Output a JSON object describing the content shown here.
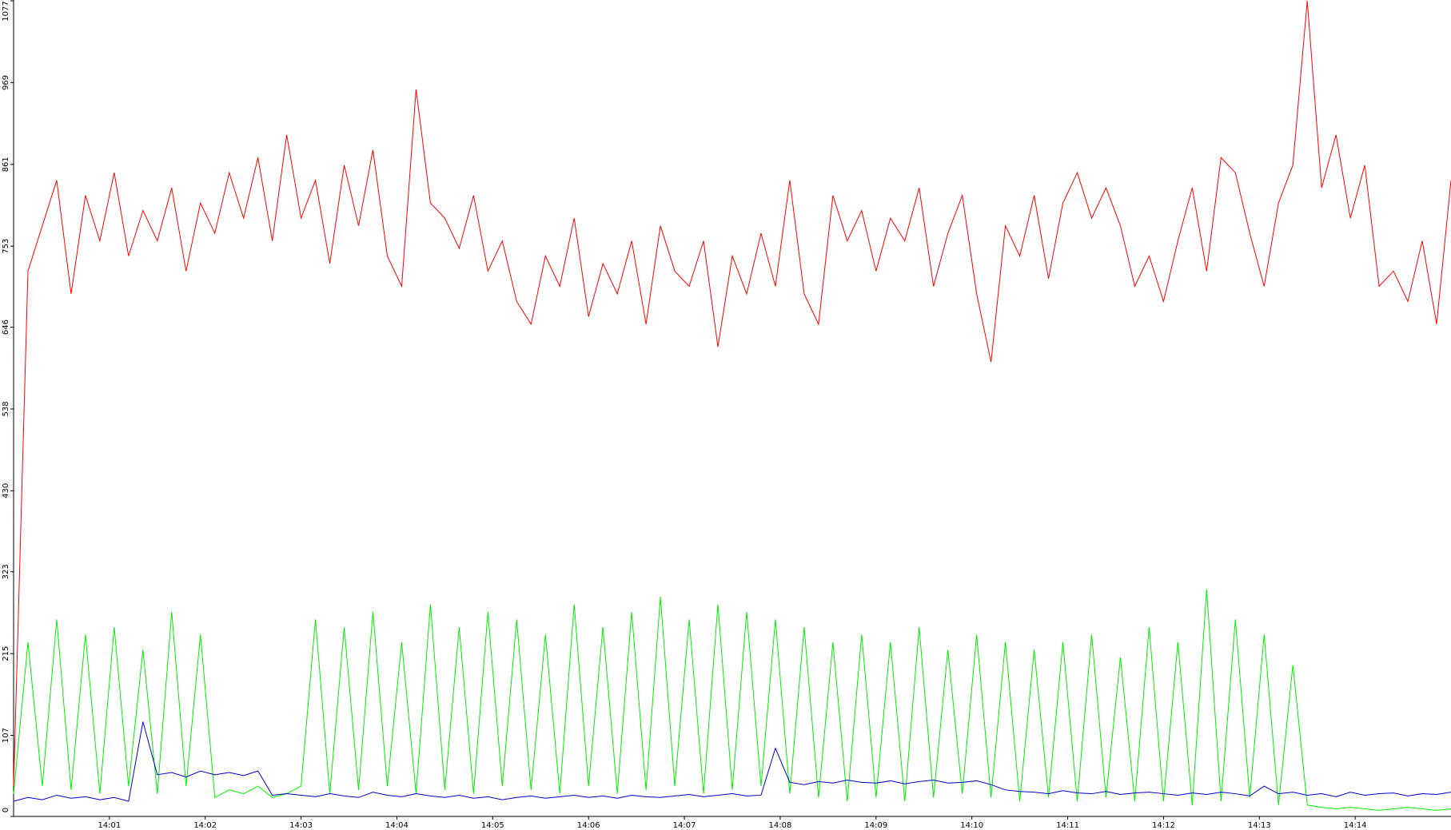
{
  "chart_data": {
    "type": "line",
    "x": [
      0,
      0.15,
      0.3,
      0.45,
      0.6,
      0.75,
      0.9,
      1.05,
      1.2,
      1.35,
      1.5,
      1.65,
      1.8,
      1.95,
      2.1,
      2.25,
      2.4,
      2.55,
      2.7,
      2.85,
      3,
      3.15,
      3.3,
      3.45,
      3.6,
      3.75,
      3.9,
      4.05,
      4.2,
      4.35,
      4.5,
      4.65,
      4.8,
      4.95,
      5.1,
      5.25,
      5.4,
      5.55,
      5.7,
      5.85,
      6,
      6.15,
      6.3,
      6.45,
      6.6,
      6.75,
      6.9,
      7.05,
      7.2,
      7.35,
      7.5,
      7.65,
      7.8,
      7.95,
      8.1,
      8.25,
      8.4,
      8.55,
      8.7,
      8.85,
      9,
      9.15,
      9.3,
      9.45,
      9.6,
      9.75,
      9.9,
      10.05,
      10.2,
      10.35,
      10.5,
      10.65,
      10.8,
      10.95,
      11.1,
      11.25,
      11.4,
      11.55,
      11.7,
      11.85,
      12,
      12.15,
      12.3,
      12.45,
      12.6,
      12.75,
      12.9,
      13.05,
      13.2,
      13.35,
      13.5,
      13.65,
      13.8,
      13.95,
      14.1,
      14.25,
      14.4,
      14.55,
      14.7,
      14.85,
      15
    ],
    "series": [
      {
        "color": "#ff0000",
        "values": [
          40,
          720,
          780,
          840,
          690,
          820,
          760,
          850,
          740,
          800,
          760,
          830,
          720,
          810,
          770,
          850,
          790,
          870,
          760,
          900,
          790,
          840,
          730,
          860,
          780,
          880,
          740,
          700,
          960,
          810,
          790,
          750,
          820,
          720,
          760,
          680,
          650,
          740,
          700,
          790,
          660,
          730,
          690,
          760,
          650,
          780,
          720,
          700,
          760,
          620,
          740,
          690,
          770,
          700,
          840,
          690,
          650,
          820,
          760,
          800,
          720,
          790,
          760,
          830,
          700,
          770,
          820,
          690,
          600,
          780,
          740,
          820,
          710,
          810,
          850,
          790,
          830,
          780,
          700,
          740,
          680,
          760,
          830,
          720,
          870,
          850,
          770,
          700,
          810,
          860,
          1077,
          830,
          900,
          790,
          860,
          700,
          720,
          680,
          760,
          650,
          840
        ]
      },
      {
        "color": "#00ee00",
        "values": [
          30,
          230,
          40,
          260,
          35,
          240,
          30,
          250,
          40,
          220,
          30,
          270,
          40,
          240,
          25,
          35,
          30,
          40,
          25,
          30,
          40,
          260,
          30,
          250,
          35,
          270,
          40,
          230,
          30,
          280,
          35,
          250,
          30,
          270,
          40,
          260,
          35,
          240,
          30,
          280,
          40,
          250,
          30,
          270,
          35,
          290,
          40,
          260,
          30,
          280,
          35,
          270,
          40,
          260,
          30,
          250,
          25,
          230,
          20,
          240,
          25,
          230,
          20,
          250,
          25,
          220,
          30,
          240,
          25,
          230,
          20,
          220,
          25,
          230,
          20,
          240,
          25,
          210,
          20,
          250,
          20,
          230,
          15,
          300,
          20,
          260,
          25,
          240,
          15,
          200,
          15,
          12,
          10,
          12,
          10,
          8,
          10,
          12,
          10,
          8,
          10
        ]
      },
      {
        "color": "#0000cc",
        "values": [
          20,
          25,
          22,
          28,
          24,
          26,
          22,
          25,
          20,
          125,
          55,
          58,
          52,
          60,
          55,
          58,
          54,
          60,
          28,
          30,
          28,
          26,
          30,
          27,
          25,
          32,
          28,
          26,
          30,
          27,
          25,
          28,
          24,
          26,
          22,
          25,
          27,
          24,
          26,
          28,
          25,
          27,
          24,
          28,
          26,
          25,
          27,
          29,
          26,
          28,
          30,
          27,
          28,
          90,
          45,
          42,
          46,
          44,
          48,
          45,
          44,
          47,
          43,
          46,
          48,
          44,
          45,
          47,
          42,
          35,
          33,
          32,
          30,
          34,
          31,
          30,
          33,
          29,
          31,
          32,
          30,
          28,
          31,
          29,
          32,
          30,
          27,
          40,
          30,
          32,
          28,
          30,
          26,
          32,
          28,
          30,
          31,
          27,
          30,
          29,
          32
        ]
      }
    ],
    "xlim": [
      0,
      15
    ],
    "xticks": [
      {
        "value": 1,
        "label": "14:01"
      },
      {
        "value": 2,
        "label": "14:02"
      },
      {
        "value": 3,
        "label": "14:03"
      },
      {
        "value": 4,
        "label": "14:04"
      },
      {
        "value": 5,
        "label": "14:05"
      },
      {
        "value": 6,
        "label": "14:06"
      },
      {
        "value": 7,
        "label": "14:07"
      },
      {
        "value": 8,
        "label": "14:08"
      },
      {
        "value": 9,
        "label": "14:09"
      },
      {
        "value": 10,
        "label": "14:10"
      },
      {
        "value": 11,
        "label": "14:11"
      },
      {
        "value": 12,
        "label": "14:12"
      },
      {
        "value": 13,
        "label": "14:13"
      },
      {
        "value": 14,
        "label": "14:14"
      }
    ],
    "ylim": [
      0,
      1077
    ],
    "yticks": [
      0,
      107,
      215,
      323,
      430,
      538,
      646,
      753,
      861,
      969,
      1077
    ]
  }
}
